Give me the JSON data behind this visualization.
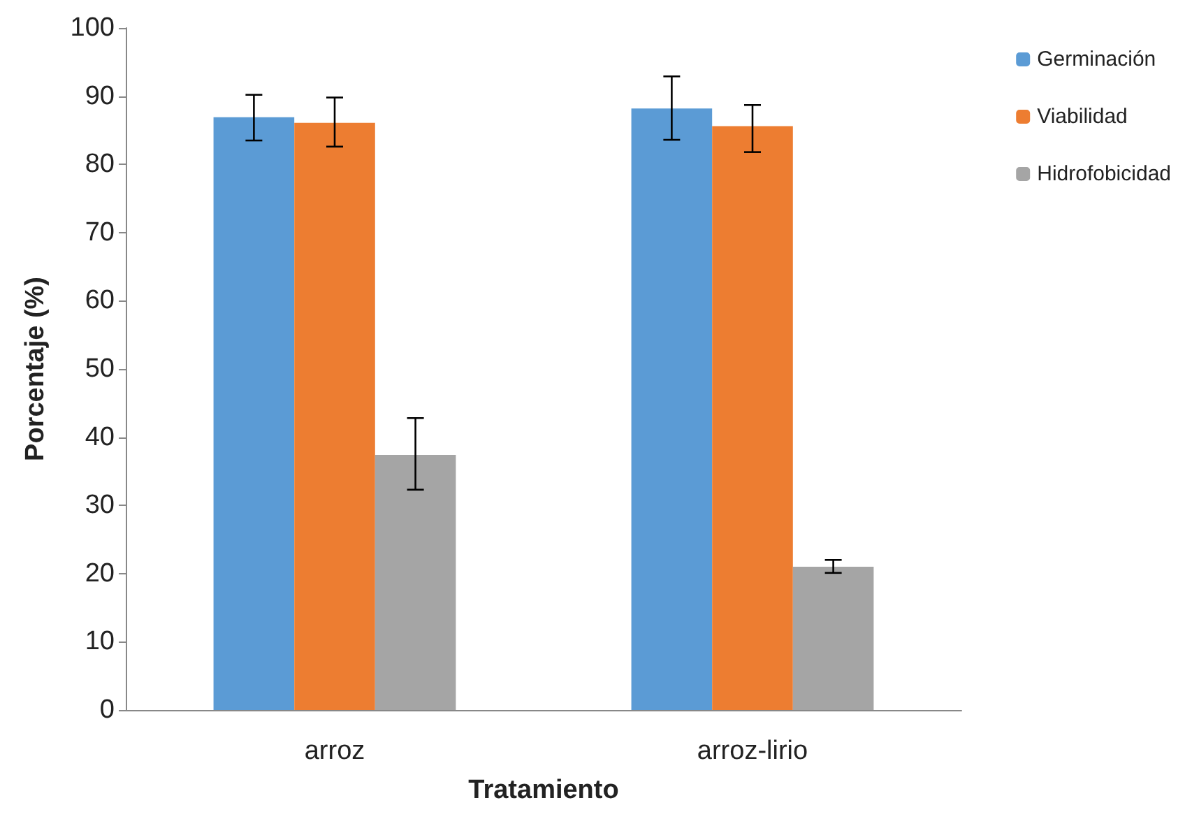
{
  "chart_data": {
    "type": "bar",
    "xlabel": "Tratamiento",
    "ylabel": "Porcentaje (%)",
    "categories": [
      "arroz",
      "arroz-lirio"
    ],
    "series": [
      {
        "name": "Germinación",
        "color": "#5b9bd5",
        "values": [
          86.9,
          88.2
        ],
        "errors": [
          [
            83.5,
            90.2
          ],
          [
            83.6,
            92.9
          ]
        ]
      },
      {
        "name": "Viabilidad",
        "color": "#ed7d31",
        "values": [
          86.1,
          85.6
        ],
        "errors": [
          [
            82.6,
            89.8
          ],
          [
            81.8,
            88.7
          ]
        ]
      },
      {
        "name": "Hidrofobicidad",
        "color": "#a5a5a5",
        "values": [
          37.4,
          21.0
        ],
        "errors": [
          [
            32.3,
            42.8
          ],
          [
            20.1,
            22.0
          ]
        ]
      }
    ],
    "ylim": [
      0,
      100
    ],
    "yticks": [
      0,
      10,
      20,
      30,
      40,
      50,
      60,
      70,
      80,
      90,
      100
    ],
    "grid": false,
    "legend": "top right"
  }
}
